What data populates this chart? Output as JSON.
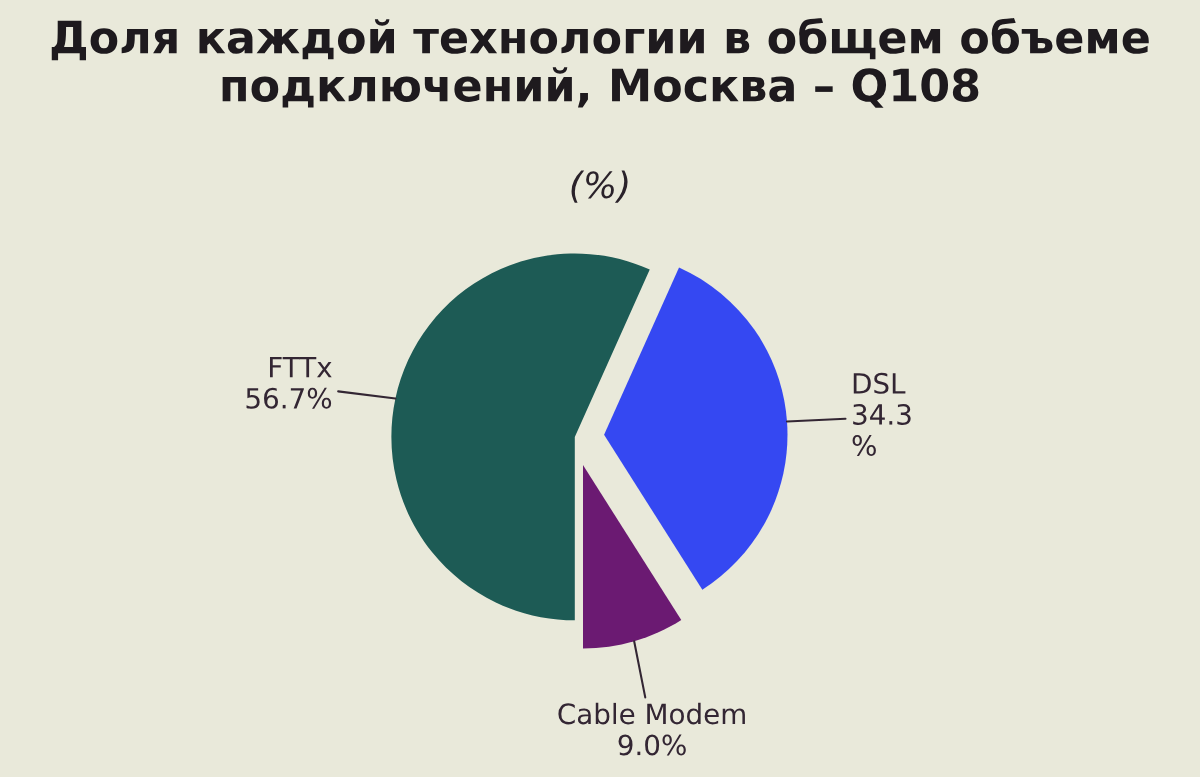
{
  "chart_data": {
    "type": "pie",
    "title": "Доля каждой технологии в общем объеме\nподключений, Москва – Q108",
    "subtitle": "(%)",
    "categories": [
      "FTTx",
      "DSL",
      "Cable Modem"
    ],
    "values": [
      56.7,
      34.3,
      9.0
    ],
    "colors": [
      "#1d5b55",
      "#3548f2",
      "#6b1a72"
    ],
    "value_labels": [
      "56.7%",
      "34.3\n%",
      "9.0%"
    ]
  }
}
